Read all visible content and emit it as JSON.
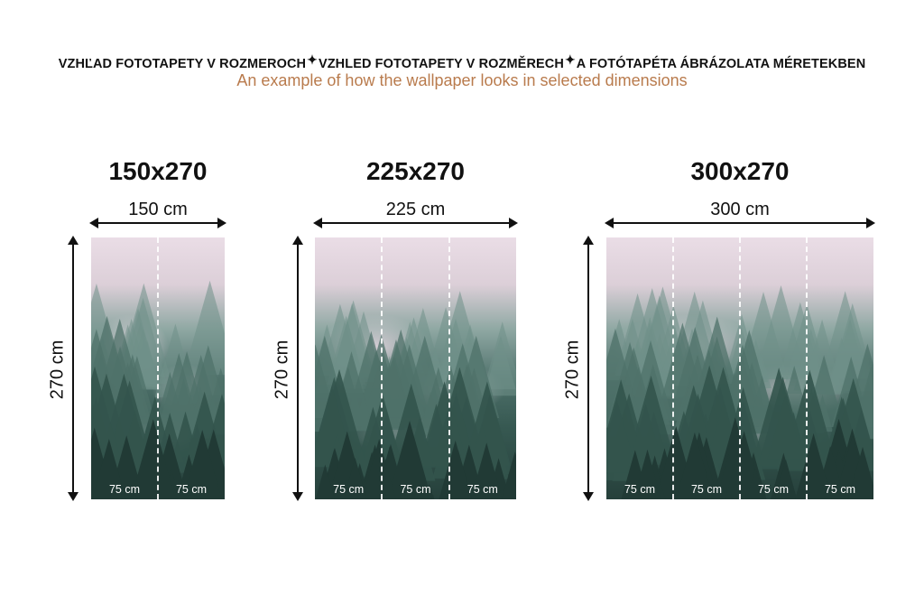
{
  "header": {
    "titles": [
      "VZHĽAD FOTOTAPETY V ROZMEROCH",
      "VZHLED FOTOTAPETY V ROZMĚRECH",
      "A FOTÓTAPÉTA ÁBRÁZOLATA MÉRETEKBEN"
    ],
    "separator_icon": "sparkle-icon",
    "subtitle": "An example of how the wallpaper looks in selected dimensions"
  },
  "colors": {
    "subtitle": "#b97b4d"
  },
  "variants": [
    {
      "title": "150x270",
      "width_label": "150 cm",
      "height_label": "270 cm",
      "segments": [
        "75 cm",
        "75 cm"
      ]
    },
    {
      "title": "225x270",
      "width_label": "225 cm",
      "height_label": "270 cm",
      "segments": [
        "75 cm",
        "75 cm",
        "75 cm"
      ]
    },
    {
      "title": "300x270",
      "width_label": "300 cm",
      "height_label": "270 cm",
      "segments": [
        "75 cm",
        "75 cm",
        "75 cm",
        "75 cm"
      ]
    }
  ]
}
